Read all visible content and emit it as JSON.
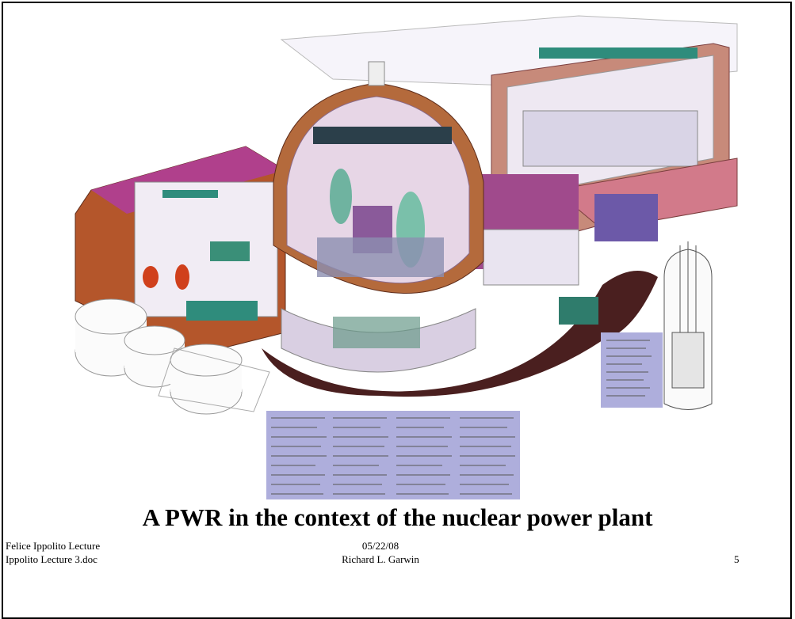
{
  "slide": {
    "title": "A PWR in the context of the nuclear power plant"
  },
  "footer": {
    "left": [
      "Felice Ippolito Lecture",
      "Ippolito Lecture 3.doc"
    ],
    "center": [
      "05/22/08",
      "Richard L. Garwin"
    ],
    "page_number": "5"
  }
}
